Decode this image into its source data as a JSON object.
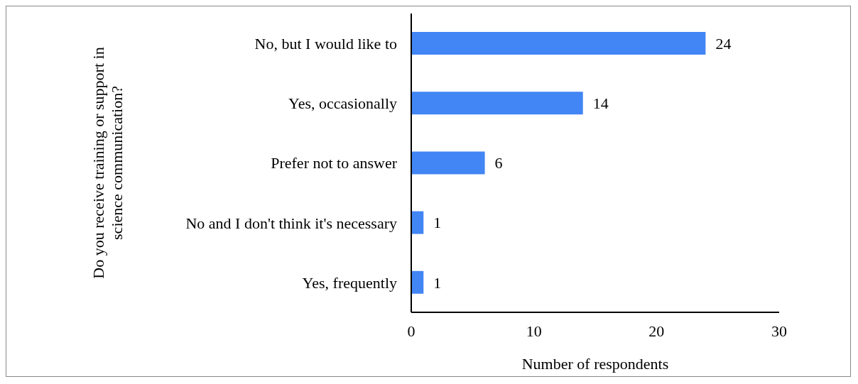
{
  "chart_data": {
    "type": "bar",
    "orientation": "horizontal",
    "ylabel": "Do you receive training or support in science communication?",
    "xlabel": "Number of respondents",
    "categories": [
      "No, but I would like to",
      "Yes, occasionally",
      "Prefer not to answer",
      "No and I don't think it's necessary",
      "Yes, frequently"
    ],
    "values": [
      24,
      14,
      6,
      1,
      1
    ],
    "color": "#4285f4",
    "xlim": [
      0,
      30
    ],
    "xticks": [
      0,
      10,
      20,
      30
    ],
    "data_labels": true,
    "grid": false
  }
}
